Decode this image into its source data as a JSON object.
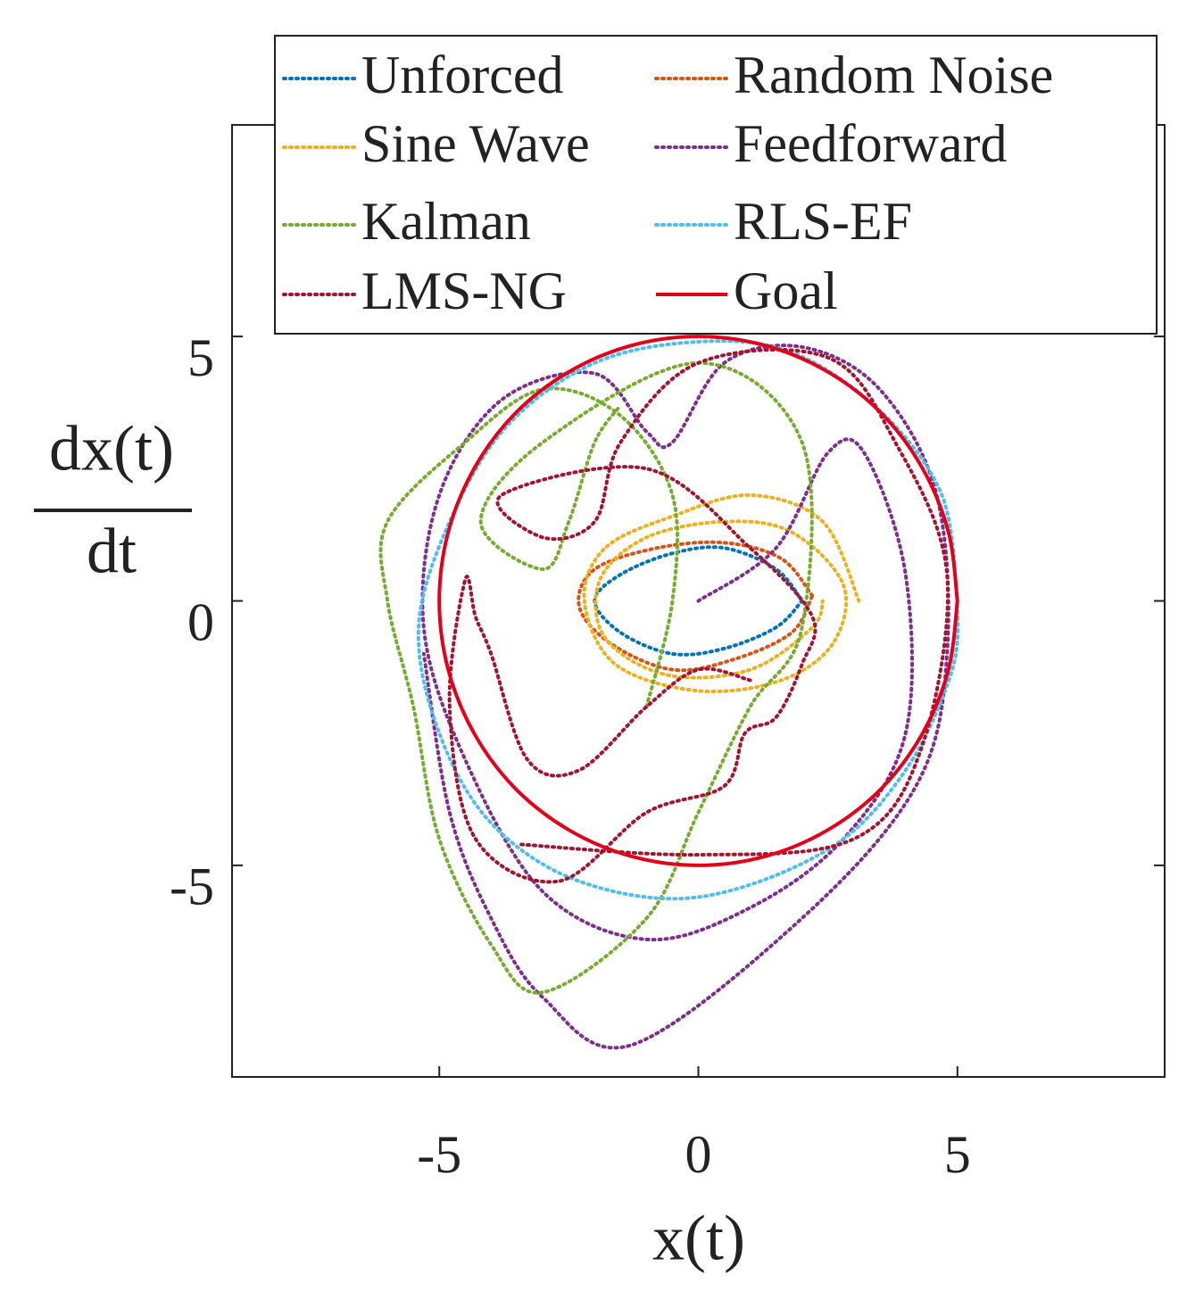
{
  "chart_data": {
    "type": "line",
    "xlabel": "x(t)",
    "ylabel": [
      "dx(t)",
      "dt"
    ],
    "xlim": [
      -9,
      9
    ],
    "ylim": [
      -9,
      9
    ],
    "xticks": [
      -5,
      0,
      5
    ],
    "yticks": [
      -5,
      0,
      5
    ],
    "legend": "top",
    "series": [
      {
        "name": "Unforced",
        "color": "#0072BD",
        "style": "dotted",
        "x": [
          2,
          1.5,
          0.5,
          -0.5,
          -1.5,
          -2,
          -1.5,
          -0.5,
          0.5,
          1.5,
          2
        ],
        "values": [
          0,
          0.6,
          1.0,
          0.9,
          0.5,
          0,
          -0.6,
          -1.0,
          -0.9,
          -0.5,
          0
        ]
      },
      {
        "name": "Random Noise",
        "color": "#D95319",
        "style": "dotted",
        "x": [
          2.2,
          1.6,
          0.5,
          -0.8,
          -2,
          -2.3,
          -1.7,
          -0.5,
          0.7,
          1.8,
          2.2
        ],
        "values": [
          0.1,
          0.8,
          1.1,
          1.0,
          0.6,
          -0.1,
          -0.8,
          -1.3,
          -1.1,
          -0.6,
          0.1
        ]
      },
      {
        "name": "Sine Wave",
        "color": "#EDB120",
        "style": "dotted",
        "x": [
          3.1,
          2.4,
          1,
          -0.5,
          -1.8,
          -2.2,
          -1.6,
          0,
          1.6,
          2.6,
          2.8,
          1.8,
          0.5,
          -1,
          -1.9,
          -1.8,
          -0.6,
          1,
          2.2,
          2.4
        ],
        "values": [
          0,
          1.5,
          2,
          1.6,
          1,
          0,
          -1.2,
          -1.7,
          -1.5,
          -0.8,
          0.3,
          1.3,
          1.5,
          1.2,
          0.4,
          -0.7,
          -1.4,
          -1.3,
          -0.5,
          0
        ]
      },
      {
        "name": "Feedforward",
        "color": "#7E2F8E",
        "style": "dotted",
        "x": [
          0,
          1.5,
          2.5,
          3.2,
          4,
          4,
          2.8,
          1,
          -1,
          -3,
          -4.5,
          -5.3,
          -5,
          -3.8,
          -2,
          -1,
          -0.5,
          0.5,
          2,
          3.5,
          4.6,
          4.8,
          4.2,
          2,
          -1.3,
          -3,
          -4,
          -4.8,
          -5.3
        ],
        "values": [
          0,
          1,
          2.8,
          2.8,
          0.5,
          -2.5,
          -4.5,
          -5.8,
          -6.4,
          -5.5,
          -3,
          -0.5,
          2,
          3.8,
          4.3,
          3.2,
          3.0,
          4.5,
          4.8,
          4,
          2,
          -1,
          -3.5,
          -6,
          -8.4,
          -7.5,
          -6,
          -4,
          -1
        ]
      },
      {
        "name": "Kalman",
        "color": "#77AC30",
        "style": "dotted",
        "x": [
          -1,
          -0.5,
          -0.5,
          -1.5,
          -3,
          -4.5,
          -6,
          -6,
          -5.5,
          -5,
          -4,
          -3,
          -1,
          0,
          1,
          2,
          2,
          0,
          -3,
          -4.2,
          -3,
          -2.5,
          -2,
          -1.5
        ],
        "values": [
          -2,
          0,
          2,
          3.5,
          4,
          3,
          1.5,
          0,
          -2,
          -4.5,
          -6.5,
          -7.4,
          -6,
          -4,
          -2,
          -0.5,
          3,
          4.5,
          3,
          1.5,
          0.6,
          1.5,
          3,
          3.7
        ]
      },
      {
        "name": "RLS-EF",
        "color": "#4DBEEE",
        "style": "dotted",
        "x": [
          5,
          4.7,
          3.5,
          1.8,
          0,
          -2,
          -3.7,
          -4.8,
          -5.4,
          -5,
          -4,
          -2.3,
          0,
          2.5,
          4,
          4.9,
          5
        ],
        "values": [
          0,
          2,
          3.6,
          4.7,
          4.9,
          4.5,
          3.3,
          1.5,
          -0.5,
          -2.5,
          -4.2,
          -5.3,
          -5.6,
          -4.7,
          -3.2,
          -1.3,
          0
        ]
      },
      {
        "name": "LMS-NG",
        "color": "#A2142F",
        "style": "dotted",
        "x": [
          1,
          0,
          -1,
          -2.3,
          -3.3,
          -4,
          -4.3,
          -4.5,
          -4.8,
          -4.3,
          -2.7,
          -1,
          0.5,
          0.9,
          1.5,
          2,
          2.2,
          1,
          -1,
          -3.8,
          -3,
          -2,
          -1.5,
          0,
          2.5,
          3.8,
          4.8,
          4.3,
          3,
          0,
          -3.5
        ],
        "values": [
          -1.5,
          -1.3,
          -2,
          -3.2,
          -3,
          -1,
          -0.3,
          0.4,
          -2,
          -4.5,
          -5.3,
          -4,
          -3.5,
          -2.5,
          -2.2,
          -1.2,
          -0.3,
          1,
          2.5,
          2,
          1.2,
          1.5,
          3,
          4.5,
          4.6,
          3,
          0.5,
          -2.8,
          -4.5,
          -4.8,
          -4.6
        ]
      },
      {
        "name": "Goal",
        "color": "#E3001B",
        "style": "solid",
        "x": [
          5,
          4.83,
          4.33,
          3.54,
          2.5,
          1.29,
          0,
          -1.29,
          -2.5,
          -3.54,
          -4.33,
          -4.83,
          -5,
          -4.83,
          -4.33,
          -3.54,
          -2.5,
          -1.29,
          0,
          1.29,
          2.5,
          3.54,
          4.33,
          4.83,
          5
        ],
        "values": [
          0,
          1.29,
          2.5,
          3.54,
          4.33,
          4.83,
          5,
          4.83,
          4.33,
          3.54,
          2.5,
          1.29,
          0,
          -1.29,
          -2.5,
          -3.54,
          -4.33,
          -4.83,
          -5,
          -4.83,
          -4.33,
          -3.54,
          -2.5,
          -1.29,
          0
        ]
      }
    ]
  }
}
